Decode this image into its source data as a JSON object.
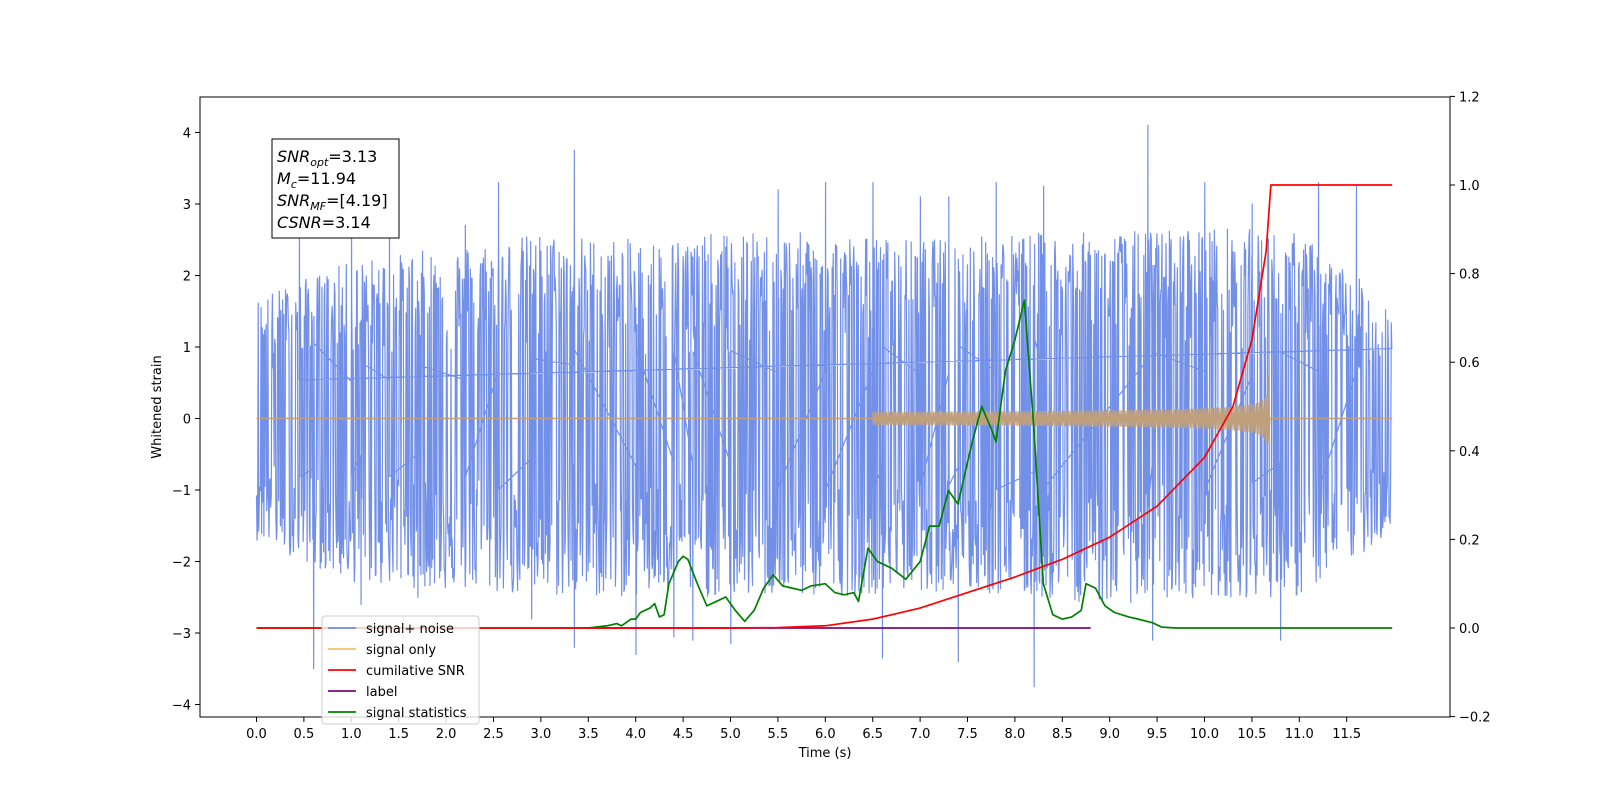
{
  "chart_data": {
    "type": "line",
    "xlabel": "Time (s)",
    "ylabel_left": "Whitened strain",
    "ylabel_right": "",
    "xlim": [
      -0.6,
      12.6
    ],
    "ylim_left": [
      -4.15,
      4.5
    ],
    "ylim_right": [
      -0.2,
      1.2
    ],
    "x_ticks": [
      0.0,
      0.5,
      1.0,
      1.5,
      2.0,
      2.5,
      3.0,
      3.5,
      4.0,
      4.5,
      5.0,
      5.5,
      6.0,
      6.5,
      7.0,
      7.5,
      8.0,
      8.5,
      9.0,
      9.5,
      10.0,
      10.5,
      11.0,
      11.5
    ],
    "x_tick_labels": [
      "0.0",
      "0.5",
      "1.0",
      "1.5",
      "2.0",
      "2.5",
      "3.0",
      "3.5",
      "4.0",
      "4.5",
      "5.0",
      "5.5",
      "6.0",
      "6.5",
      "7.0",
      "7.5",
      "8.0",
      "8.5",
      "9.0",
      "9.5",
      "10.0",
      "10.5",
      "11.0",
      "11.5"
    ],
    "y_left_ticks": [
      4,
      3,
      2,
      1,
      0,
      -1,
      -2,
      -3,
      -4
    ],
    "y_left_tick_labels": [
      "4",
      "3",
      "2",
      "1",
      "0",
      "−1",
      "−2",
      "−3",
      "−4"
    ],
    "y_right_ticks": [
      1.2,
      1.0,
      0.8,
      0.6,
      0.4,
      0.2,
      0.0,
      -0.2
    ],
    "y_right_tick_labels": [
      "1.2",
      "1.0",
      "0.8",
      "0.6",
      "0.4",
      "0.2",
      "0.0",
      "−0.2"
    ],
    "grid": false,
    "legend_position": "lower-left",
    "annotation": {
      "lines": [
        {
          "base": "SNR",
          "sub": "opt",
          "value": "=3.13"
        },
        {
          "base": "M",
          "sub": "c",
          "value": "=11.94"
        },
        {
          "base": "SNR",
          "sub": "MF",
          "value": "=[4.19]"
        },
        {
          "base": "CSNR",
          "sub": "",
          "value": "=3.14"
        }
      ]
    },
    "series": [
      {
        "name": "signal+ noise",
        "color": "#7390e8",
        "axis": "left",
        "style": "noise",
        "x_range": [
          0.0,
          11.98
        ],
        "envelope_upper": [
          [
            0.0,
            1.7
          ],
          [
            1.0,
            2.2
          ],
          [
            2.0,
            2.4
          ],
          [
            3.0,
            2.6
          ],
          [
            4.0,
            2.5
          ],
          [
            5.0,
            2.6
          ],
          [
            6.0,
            2.6
          ],
          [
            7.0,
            2.5
          ],
          [
            8.0,
            2.6
          ],
          [
            9.0,
            2.6
          ],
          [
            10.0,
            2.7
          ],
          [
            11.0,
            2.6
          ],
          [
            11.98,
            1.6
          ]
        ],
        "envelope_lower": [
          [
            0.0,
            -1.7
          ],
          [
            1.0,
            -2.3
          ],
          [
            2.0,
            -2.4
          ],
          [
            3.0,
            -2.5
          ],
          [
            4.0,
            -2.5
          ],
          [
            5.0,
            -2.5
          ],
          [
            6.0,
            -2.5
          ],
          [
            7.0,
            -2.4
          ],
          [
            8.0,
            -2.5
          ],
          [
            9.0,
            -2.6
          ],
          [
            10.0,
            -2.5
          ],
          [
            11.0,
            -2.5
          ],
          [
            11.98,
            -1.6
          ]
        ],
        "spikes": [
          [
            0.45,
            2.7
          ],
          [
            0.6,
            -3.5
          ],
          [
            1.0,
            2.6
          ],
          [
            1.1,
            -2.6
          ],
          [
            1.4,
            2.7
          ],
          [
            1.7,
            -2.5
          ],
          [
            2.2,
            2.7
          ],
          [
            2.55,
            3.3
          ],
          [
            2.9,
            -2.8
          ],
          [
            3.35,
            3.75
          ],
          [
            3.35,
            -3.2
          ],
          [
            4.0,
            -3.3
          ],
          [
            4.4,
            -3.05
          ],
          [
            4.6,
            -3.1
          ],
          [
            5.0,
            -3.15
          ],
          [
            5.5,
            3.2
          ],
          [
            6.0,
            3.3
          ],
          [
            6.5,
            3.3
          ],
          [
            6.6,
            -3.35
          ],
          [
            7.0,
            3.1
          ],
          [
            7.3,
            3.1
          ],
          [
            7.4,
            -3.4
          ],
          [
            7.8,
            3.3
          ],
          [
            8.2,
            -3.75
          ],
          [
            8.3,
            3.25
          ],
          [
            9.4,
            4.1
          ],
          [
            9.45,
            -3.1
          ],
          [
            10.0,
            3.3
          ],
          [
            10.5,
            3.0
          ],
          [
            10.8,
            -3.1
          ],
          [
            11.2,
            3.3
          ],
          [
            11.6,
            3.25
          ]
        ]
      },
      {
        "name": "signal only",
        "color": "#f5c06b",
        "axis": "left",
        "style": "chirp",
        "x_range": [
          0.0,
          11.98
        ],
        "chirp_start": 6.5,
        "chirp_peak_time": 10.67,
        "chirp_peak_amplitude": 0.6,
        "overlap_color": "#c0a07c"
      },
      {
        "name": "cumilative SNR",
        "color": "#ff0000",
        "axis": "right",
        "style": "line",
        "points": [
          [
            0.0,
            0.0
          ],
          [
            5.0,
            0.0
          ],
          [
            5.5,
            0.001
          ],
          [
            6.0,
            0.005
          ],
          [
            6.5,
            0.02
          ],
          [
            7.0,
            0.045
          ],
          [
            7.5,
            0.08
          ],
          [
            8.0,
            0.115
          ],
          [
            8.5,
            0.155
          ],
          [
            9.0,
            0.205
          ],
          [
            9.5,
            0.275
          ],
          [
            10.0,
            0.385
          ],
          [
            10.3,
            0.5
          ],
          [
            10.5,
            0.65
          ],
          [
            10.65,
            0.85
          ],
          [
            10.7,
            1.0
          ],
          [
            11.98,
            1.0
          ]
        ]
      },
      {
        "name": "label",
        "color": "#7b0a7b",
        "axis": "right",
        "style": "line",
        "points": [
          [
            3.5,
            0.0
          ],
          [
            8.8,
            0.0
          ]
        ]
      },
      {
        "name": "signal statistics",
        "color": "#008000",
        "axis": "right",
        "style": "line",
        "points": [
          [
            0.0,
            0.0
          ],
          [
            3.5,
            0.0
          ],
          [
            3.7,
            0.005
          ],
          [
            3.8,
            0.01
          ],
          [
            3.85,
            0.005
          ],
          [
            3.95,
            0.02
          ],
          [
            4.0,
            0.02
          ],
          [
            4.05,
            0.035
          ],
          [
            4.15,
            0.045
          ],
          [
            4.2,
            0.055
          ],
          [
            4.25,
            0.025
          ],
          [
            4.3,
            0.03
          ],
          [
            4.35,
            0.1
          ],
          [
            4.45,
            0.15
          ],
          [
            4.5,
            0.162
          ],
          [
            4.55,
            0.155
          ],
          [
            4.65,
            0.1
          ],
          [
            4.75,
            0.05
          ],
          [
            4.85,
            0.06
          ],
          [
            4.95,
            0.07
          ],
          [
            5.05,
            0.04
          ],
          [
            5.15,
            0.015
          ],
          [
            5.25,
            0.04
          ],
          [
            5.35,
            0.09
          ],
          [
            5.45,
            0.12
          ],
          [
            5.55,
            0.095
          ],
          [
            5.65,
            0.09
          ],
          [
            5.75,
            0.085
          ],
          [
            5.85,
            0.095
          ],
          [
            6.0,
            0.1
          ],
          [
            6.1,
            0.08
          ],
          [
            6.2,
            0.075
          ],
          [
            6.3,
            0.08
          ],
          [
            6.35,
            0.06
          ],
          [
            6.45,
            0.18
          ],
          [
            6.55,
            0.15
          ],
          [
            6.7,
            0.135
          ],
          [
            6.85,
            0.11
          ],
          [
            7.0,
            0.15
          ],
          [
            7.1,
            0.23
          ],
          [
            7.2,
            0.23
          ],
          [
            7.3,
            0.31
          ],
          [
            7.4,
            0.28
          ],
          [
            7.55,
            0.42
          ],
          [
            7.65,
            0.5
          ],
          [
            7.75,
            0.45
          ],
          [
            7.8,
            0.42
          ],
          [
            7.9,
            0.58
          ],
          [
            8.0,
            0.65
          ],
          [
            8.1,
            0.74
          ],
          [
            8.2,
            0.45
          ],
          [
            8.3,
            0.1
          ],
          [
            8.4,
            0.03
          ],
          [
            8.5,
            0.02
          ],
          [
            8.6,
            0.025
          ],
          [
            8.7,
            0.04
          ],
          [
            8.75,
            0.1
          ],
          [
            8.85,
            0.09
          ],
          [
            8.95,
            0.05
          ],
          [
            9.05,
            0.035
          ],
          [
            9.2,
            0.025
          ],
          [
            9.3,
            0.02
          ],
          [
            9.45,
            0.012
          ],
          [
            9.55,
            0.002
          ],
          [
            9.7,
            0.0
          ],
          [
            11.98,
            0.0
          ]
        ]
      }
    ],
    "legend_entries": [
      "signal+ noise",
      "signal only",
      "cumilative SNR",
      "label",
      "signal statistics"
    ]
  }
}
